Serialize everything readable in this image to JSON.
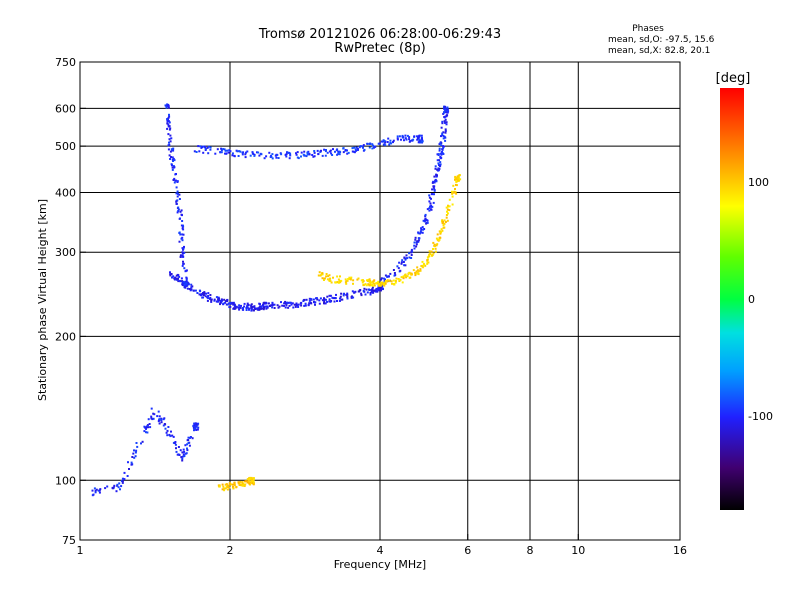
{
  "chart_data": {
    "type": "scatter",
    "title_line1": "Tromsø 20121026 06:28:00-06:29:43",
    "title_line2": "RwPretec (8p)",
    "stats": {
      "heading": "Phases",
      "line1": "mean, sd,O: -97.5, 15.6",
      "line2": "mean, sd,X:  82.8, 20.1"
    },
    "xlabel": "Frequency [MHz]",
    "ylabel": "Stationary phase Virtual Height [km]",
    "x_scale": "log",
    "y_scale": "log",
    "xlim": [
      1,
      16
    ],
    "ylim": [
      75,
      750
    ],
    "x_ticks": [
      1,
      2,
      4,
      6,
      8,
      10,
      16
    ],
    "x_tick_labels": [
      "1",
      "2",
      "4",
      "6",
      "8",
      "10",
      "16"
    ],
    "y_ticks": [
      75,
      100,
      200,
      300,
      400,
      500,
      600,
      750
    ],
    "y_tick_labels": [
      "75",
      "100",
      "200",
      "300",
      "400",
      "500",
      "600",
      "750"
    ],
    "grid": true,
    "colorbar": {
      "label": "[deg]",
      "ticks": [
        100,
        0,
        -100
      ],
      "tick_labels": [
        "100",
        "0",
        "-100"
      ],
      "range": [
        -180,
        180
      ]
    },
    "traces": [
      {
        "desc": "O-mode F layer lower trace",
        "x": [
          1.5,
          1.6,
          1.7,
          1.8,
          1.9,
          2.0,
          2.1,
          2.2,
          2.3,
          2.4,
          2.6,
          2.8,
          3.0,
          3.2,
          3.5,
          3.8,
          4.0
        ],
        "y": [
          275,
          260,
          250,
          243,
          238,
          234,
          232,
          231,
          232,
          233,
          234,
          236,
          238,
          241,
          245,
          250,
          255
        ],
        "phase": -105
      },
      {
        "desc": "O-mode F layer rising trace",
        "x": [
          4.0,
          4.3,
          4.6,
          4.8,
          5.0,
          5.1,
          5.2,
          5.3,
          5.35,
          5.4
        ],
        "y": [
          260,
          275,
          300,
          330,
          370,
          410,
          450,
          500,
          550,
          600
        ],
        "phase": -100
      },
      {
        "desc": "O-mode spread near 1.5 MHz",
        "x": [
          1.48,
          1.5,
          1.52,
          1.55,
          1.58,
          1.6,
          1.62
        ],
        "y": [
          620,
          560,
          480,
          420,
          360,
          300,
          260
        ],
        "phase": -100
      },
      {
        "desc": "Upper echo band",
        "x": [
          1.7,
          1.9,
          2.1,
          2.4,
          2.7,
          3.0,
          3.3,
          3.6,
          4.0,
          4.4,
          4.8
        ],
        "y": [
          495,
          490,
          485,
          480,
          482,
          485,
          490,
          495,
          510,
          520,
          520
        ],
        "phase": -95
      },
      {
        "desc": "X-mode F layer trace",
        "x": [
          3.0,
          3.2,
          3.5,
          3.8,
          4.0,
          4.3,
          4.6,
          4.9,
          5.1,
          5.3,
          5.5,
          5.7
        ],
        "y": [
          270,
          265,
          262,
          260,
          258,
          262,
          270,
          285,
          305,
          335,
          380,
          430
        ],
        "phase": 95
      },
      {
        "desc": "E/Es region echoes",
        "x": [
          1.05,
          1.2,
          1.3,
          1.4,
          1.5,
          1.6,
          1.7
        ],
        "y": [
          95,
          97,
          118,
          140,
          128,
          112,
          130
        ],
        "phase": -100
      },
      {
        "desc": "Es X-mode echoes",
        "x": [
          1.9,
          2.0,
          2.1,
          2.2
        ],
        "y": [
          97,
          98,
          99,
          100
        ],
        "phase": 100
      }
    ]
  }
}
